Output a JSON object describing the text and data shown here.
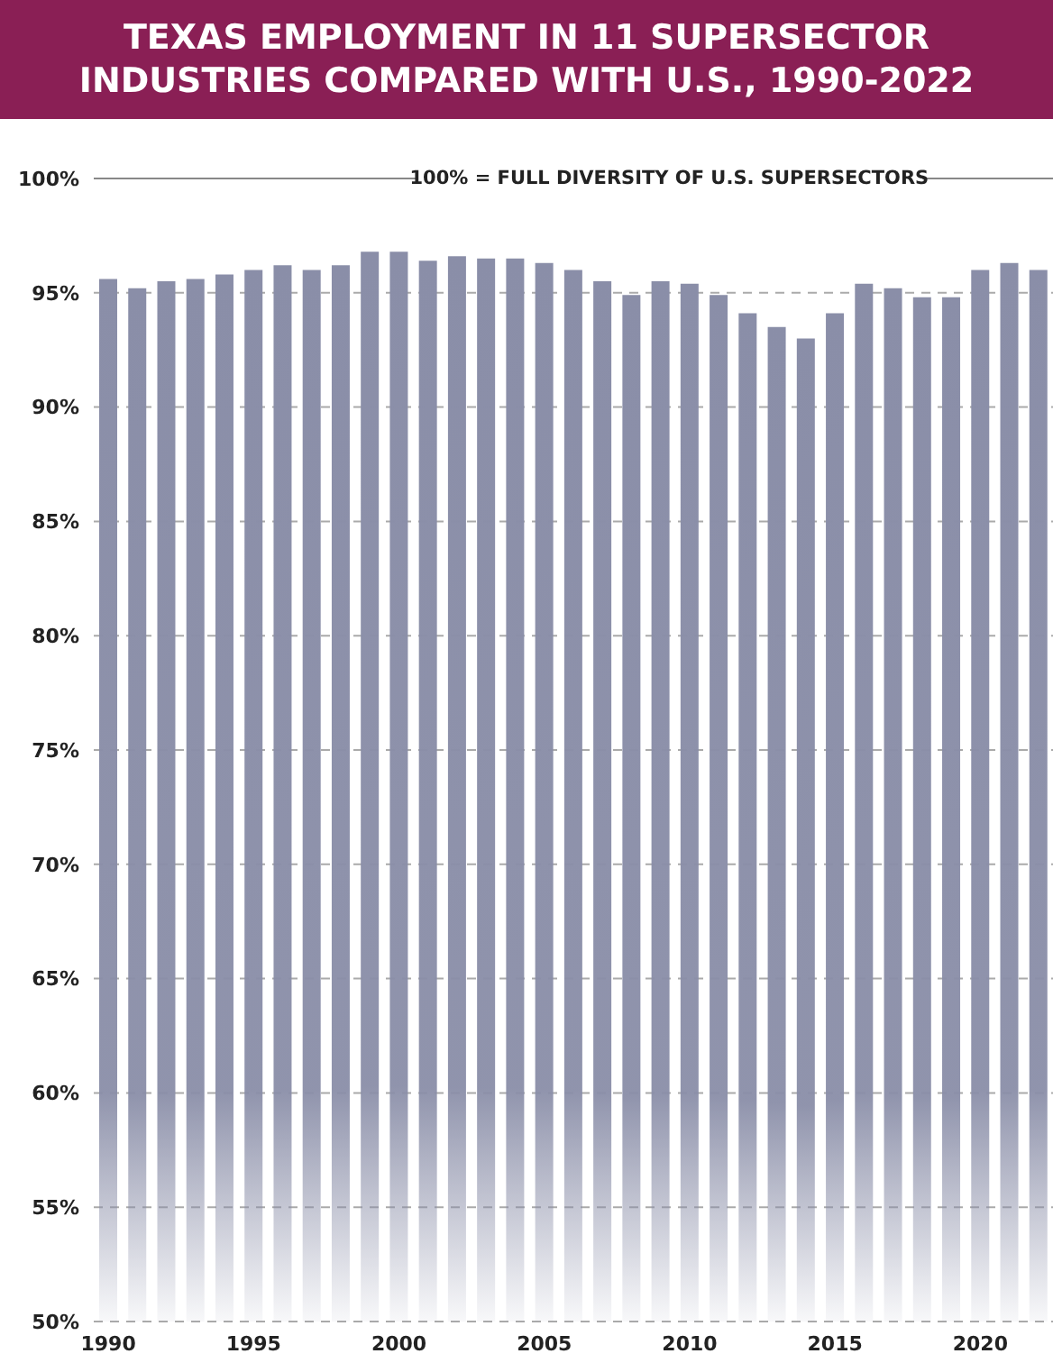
{
  "chart_data": {
    "type": "bar",
    "title": "TEXAS EMPLOYMENT IN 11 SUPERSECTOR INDUSTRIES COMPARED WITH U.S., 1990-2022",
    "categories": [
      "1990",
      null,
      null,
      null,
      null,
      "1995",
      null,
      null,
      null,
      null,
      "2000",
      null,
      null,
      null,
      null,
      "2005",
      null,
      null,
      null,
      null,
      "2010",
      null,
      null,
      null,
      null,
      "2015",
      null,
      null,
      null,
      null,
      "2020",
      null,
      null
    ],
    "values": [
      95.6,
      95.2,
      95.5,
      95.6,
      95.8,
      96.0,
      96.2,
      96.0,
      96.2,
      96.8,
      96.8,
      96.4,
      96.6,
      96.5,
      96.5,
      96.3,
      96.0,
      95.5,
      94.9,
      95.5,
      95.4,
      94.9,
      94.1,
      93.5,
      93.0,
      94.1,
      95.4,
      95.2,
      94.8,
      94.8,
      96.0,
      96.3,
      96.0
    ],
    "color": "#8a8ea8",
    "ylim": [
      50,
      100
    ],
    "yticks": [
      {
        "value": 50,
        "label": "50%"
      },
      {
        "value": 55,
        "label": "55%"
      },
      {
        "value": 60,
        "label": "60%"
      },
      {
        "value": 65,
        "label": "65%"
      },
      {
        "value": 70,
        "label": "70%"
      },
      {
        "value": 75,
        "label": "75%"
      },
      {
        "value": 80,
        "label": "80%"
      },
      {
        "value": 85,
        "label": "85%"
      },
      {
        "value": 90,
        "label": "90%"
      },
      {
        "value": 95,
        "label": "95%"
      },
      {
        "value": 100,
        "label": "100%"
      }
    ],
    "grid": "y",
    "ref_lines": [
      {
        "axis": "y",
        "value": 100,
        "label": "100% = FULL DIVERSITY OF U.S. SUPERSECTORS"
      }
    ]
  }
}
